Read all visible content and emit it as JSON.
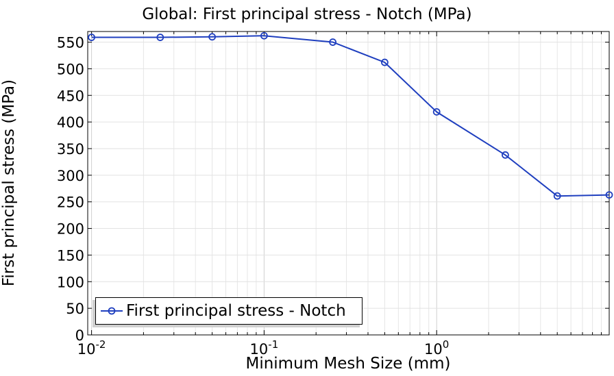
{
  "chart_data": {
    "type": "line",
    "title": "Global: First principal stress - Notch (MPa)",
    "xlabel": "Minimum Mesh Size (mm)",
    "ylabel": "First principal stress (MPa)",
    "x_scale": "log",
    "xlim": [
      0.0095,
      10
    ],
    "ylim": [
      0,
      570
    ],
    "y_ticks": [
      0,
      50,
      100,
      150,
      200,
      250,
      300,
      350,
      400,
      450,
      500,
      550
    ],
    "x_tick_labels": [
      {
        "value": 0.01,
        "mantissa": "10",
        "exponent": "-2"
      },
      {
        "value": 0.1,
        "mantissa": "10",
        "exponent": "-1"
      },
      {
        "value": 1,
        "mantissa": "10",
        "exponent": "0"
      }
    ],
    "grid": true,
    "legend_position": "lower-left",
    "series": [
      {
        "name": "First principal stress - Notch",
        "color": "#1f3fbf",
        "marker": "circle",
        "x": [
          0.01,
          0.025,
          0.05,
          0.1,
          0.25,
          0.5,
          1,
          2.5,
          5,
          10
        ],
        "y": [
          559,
          559,
          560,
          562,
          550,
          512,
          419,
          338,
          261,
          263
        ]
      }
    ]
  }
}
